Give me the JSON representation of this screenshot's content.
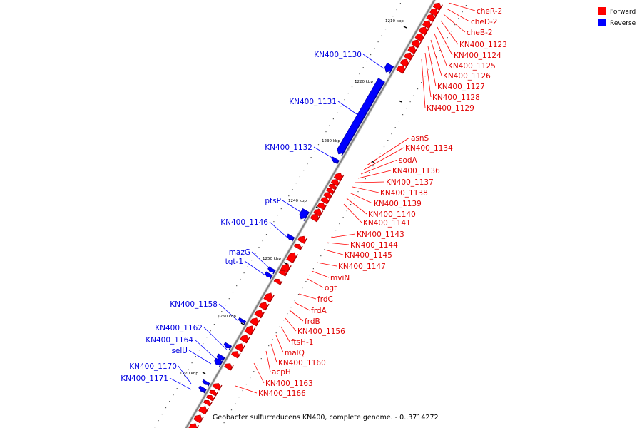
{
  "legend": [
    {
      "label": "Forward",
      "color": "#ff0000"
    },
    {
      "label": "Reverse",
      "color": "#0000ff"
    }
  ],
  "caption": "Geobacter sulfurreducens KN400, complete genome. - 0..3714272",
  "colors": {
    "forward": "#ff0000",
    "forward_dark": "#a80000",
    "reverse": "#0000ff",
    "reverse_dark": "#00009a",
    "backbone": "#808080"
  },
  "position_markers": [
    "1210 kbp",
    "1220 kbp",
    "1230 kbp",
    "1240 kbp",
    "1250 kbp",
    "1260 kbp",
    "1270 kbp"
  ],
  "forward_labels": [
    "cheR-2",
    "cheD-2",
    "cheB-2",
    "KN400_1123",
    "KN400_1124",
    "KN400_1125",
    "KN400_1126",
    "KN400_1127",
    "KN400_1128",
    "KN400_1129",
    "asnS",
    "KN400_1134",
    "sodA",
    "KN400_1136",
    "KN400_1137",
    "KN400_1138",
    "KN400_1139",
    "KN400_1140",
    "KN400_1141",
    "KN400_1143",
    "KN400_1144",
    "KN400_1145",
    "KN400_1147",
    "mviN",
    "ogt",
    "frdC",
    "frdA",
    "frdB",
    "KN400_1156",
    "ftsH-1",
    "malQ",
    "KN400_1160",
    "acpH",
    "KN400_1163",
    "KN400_1166"
  ],
  "reverse_labels": [
    "KN400_1130",
    "KN400_1131",
    "KN400_1132",
    "ptsP",
    "KN400_1146",
    "mazG",
    "tgt-1",
    "KN400_1158",
    "KN400_1162",
    "KN400_1164",
    "selU",
    "KN400_1170",
    "KN400_1171"
  ]
}
